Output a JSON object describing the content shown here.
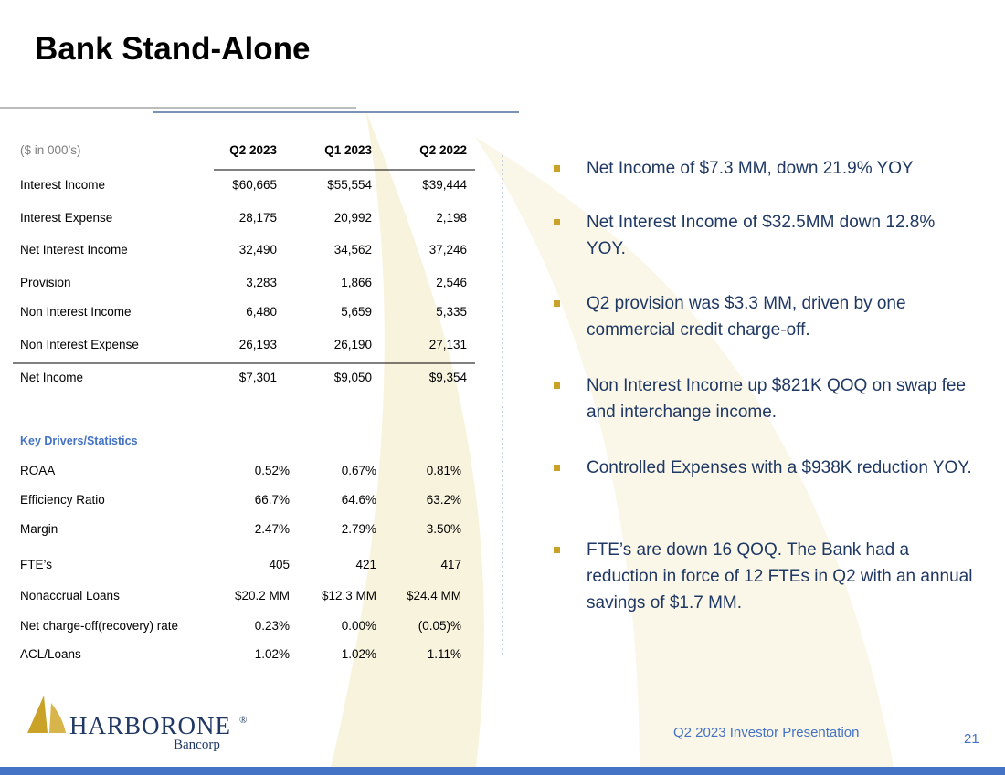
{
  "header": {
    "title": "Bank Stand-Alone"
  },
  "table": {
    "header": [
      "($ in 000’s)",
      "Q2 2023",
      "Q1 2023",
      "Q2 2022"
    ],
    "rows": [
      [
        "Interest Income",
        "$60,665",
        "$55,554",
        "$39,444"
      ],
      [
        "Interest Expense",
        "28,175",
        "20,992",
        "2,198"
      ],
      [
        "Net Interest Income",
        "32,490",
        "34,562",
        "37,246"
      ],
      [
        "Provision",
        "3,283",
        "1,866",
        "2,546"
      ],
      [
        "Non Interest Income",
        "6,480",
        "5,659",
        "5,335"
      ],
      [
        "Non Interest Expense",
        "26,193",
        "26,190",
        "27,131"
      ],
      [
        "Net Income",
        "$7,301",
        "$9,050",
        "$9,354"
      ]
    ]
  },
  "stats": {
    "title": "Key Drivers/Statistics",
    "rows": [
      [
        "ROAA",
        "0.52%",
        "0.67%",
        "0.81%"
      ],
      [
        "Efficiency Ratio",
        "66.7%",
        "64.6%",
        "63.2%"
      ],
      [
        "Margin",
        "2.47%",
        "2.79%",
        "3.50%"
      ],
      [
        "FTE’s",
        "405",
        "421",
        "417"
      ],
      [
        "Nonaccrual Loans",
        "$20.2 MM",
        "$12.3 MM",
        "$24.4 MM"
      ],
      [
        "Net charge-off(recovery) rate",
        "0.23%",
        "0.00%",
        "(0.05)%"
      ],
      [
        "ACL/Loans",
        "1.02%",
        "1.02%",
        "1.11%"
      ]
    ]
  },
  "bullets": [
    "Net Income of $7.3 MM, down 21.9% YOY",
    "Net Interest Income of $32.5MM down 12.8% YOY.",
    "Q2 provision was $3.3 MM, driven by one commercial credit charge-off.",
    "Non Interest Income up $821K QOQ on swap fee and interchange income.",
    "Controlled Expenses with a $938K reduction YOY.",
    "FTE’s are down 16 QOQ. The Bank had a reduction in force of 12 FTEs in Q2 with an annual savings of $1.7 MM."
  ],
  "footer": {
    "logo": {
      "name": "HARBORONE",
      "mark": "®",
      "sub": "Bancorp"
    },
    "caption": "Q2 2023 Investor Presentation",
    "page": "21"
  }
}
